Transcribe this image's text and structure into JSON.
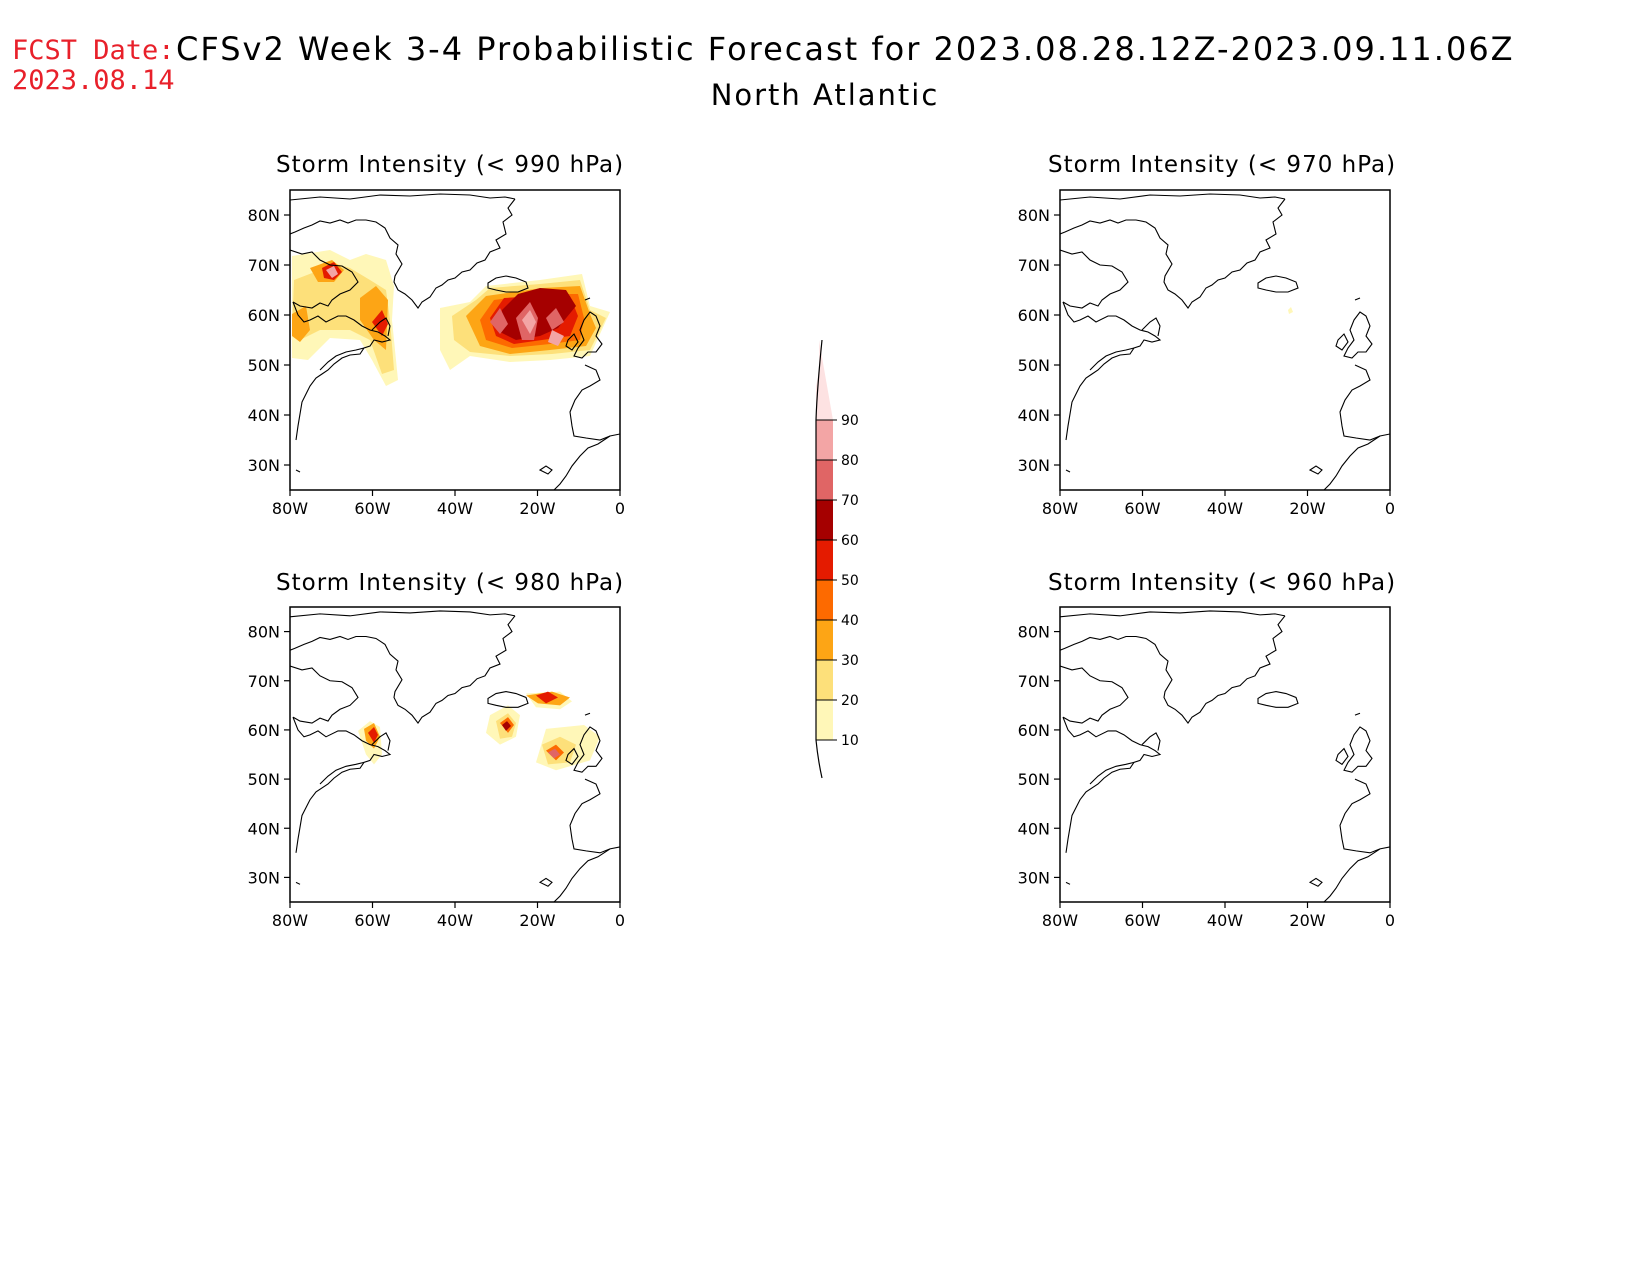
{
  "header": {
    "fcst_label": "FCST Date:",
    "fcst_date": "2023.08.14",
    "title": "CFSv2 Week 3-4 Probabilistic Forecast for 2023.08.28.12Z-2023.09.11.06Z",
    "subtitle": "North Atlantic"
  },
  "panels": [
    {
      "title": "Storm Intensity (< 990 hPa)"
    },
    {
      "title": "Storm Intensity (< 970 hPa)"
    },
    {
      "title": "Storm Intensity (< 980 hPa)"
    },
    {
      "title": "Storm Intensity (< 960 hPa)"
    }
  ],
  "axes": {
    "lat_ticks": [
      "80N",
      "70N",
      "60N",
      "50N",
      "40N",
      "30N"
    ],
    "lon_ticks": [
      "80W",
      "60W",
      "40W",
      "20W",
      "0"
    ]
  },
  "colorbar": {
    "levels": [
      "10",
      "20",
      "30",
      "40",
      "50",
      "60",
      "70",
      "80",
      "90"
    ],
    "colors": [
      "#fff7b8",
      "#fde07a",
      "#fda515",
      "#fd6a00",
      "#e41b00",
      "#a50000",
      "#e06565",
      "#f3a5a5",
      "#fde2e2"
    ]
  }
}
